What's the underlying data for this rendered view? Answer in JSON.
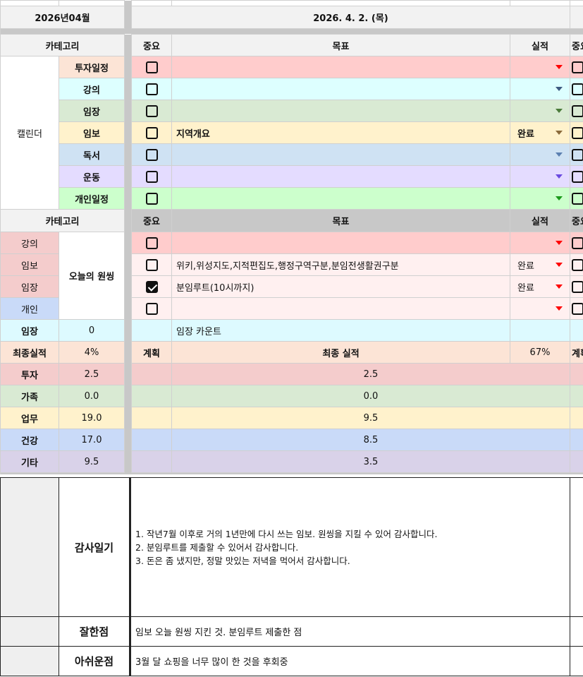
{
  "header": {
    "month": "2026년04월",
    "date": "2026. 4. 2. (목)"
  },
  "colors": {
    "separator": "#c8c8c8",
    "header_bg": "#f2f2f2",
    "dropdown_arrow": "#ff0000"
  },
  "calendar": {
    "category_header": "카테고리",
    "importance_header": "중요",
    "goal_header": "목표",
    "result_header": "실적",
    "group_label": "캘린더",
    "rows": [
      {
        "label": "투자일정",
        "label_color": "#fce4d6",
        "color": "#ffcccc",
        "arrow": "#ff0000",
        "checked": false,
        "goal": "",
        "result": ""
      },
      {
        "label": "강의",
        "label_color": "#ddffff",
        "color": "#ddffff",
        "arrow": "#3d5a80",
        "checked": false,
        "goal": "",
        "result": ""
      },
      {
        "label": "임장",
        "label_color": "#d9ead3",
        "color": "#d9ead3",
        "arrow": "#4a7a3a",
        "checked": false,
        "goal": "",
        "result": ""
      },
      {
        "label": "임보",
        "label_color": "#fff2cc",
        "color": "#fff2cc",
        "arrow": "#8a6a3a",
        "checked": false,
        "goal": "지역개요",
        "result": "완료"
      },
      {
        "label": "독서",
        "label_color": "#cfe2f3",
        "color": "#cfe2f3",
        "arrow": "#5b7fb0",
        "checked": false,
        "goal": "",
        "result": ""
      },
      {
        "label": "운동",
        "label_color": "#e4dcff",
        "color": "#e4dcff",
        "arrow": "#6a4ae0",
        "checked": false,
        "goal": "",
        "result": ""
      },
      {
        "label": "개인일정",
        "label_color": "#ccffcc",
        "color": "#ccffcc",
        "arrow": "#1a9a1a",
        "checked": false,
        "goal": "",
        "result": ""
      }
    ]
  },
  "onething": {
    "category_header": "카테고리",
    "importance_header": "중요",
    "goal_header": "목표",
    "result_header": "실적",
    "group_label": "오늘의 원씽",
    "rows": [
      {
        "label": "강의",
        "label_color": "#f4cccc",
        "color": "#ffcccc",
        "checked": false,
        "goal": "",
        "result": ""
      },
      {
        "label": "임보",
        "label_color": "#f4cccc",
        "color": "#fff0f0",
        "checked": false,
        "goal": "위키,위성지도,지적편집도,행정구역구분,분임전생활권구분",
        "result": "완료"
      },
      {
        "label": "임장",
        "label_color": "#f4cccc",
        "color": "#fff0f0",
        "checked": true,
        "goal": "분임루트(10시까지)",
        "result": "완료"
      },
      {
        "label": "개인",
        "label_color": "#c9daf8",
        "color": "#fff0f0",
        "checked": false,
        "goal": "",
        "result": ""
      }
    ]
  },
  "visit": {
    "label": "임장",
    "count": "0",
    "goal": "임장 카운트",
    "color": "#ddfaff"
  },
  "final": {
    "label": "최종실적",
    "value": "4%",
    "plan": "계획",
    "title": "최종 실적",
    "percent": "67%",
    "next": "계획",
    "color": "#fce4d6"
  },
  "scores": [
    {
      "label": "투자",
      "value": "2.5",
      "final": "2.5",
      "color": "#f4cccc"
    },
    {
      "label": "가족",
      "value": "0.0",
      "final": "0.0",
      "color": "#d9ead3"
    },
    {
      "label": "업무",
      "value": "19.0",
      "final": "9.5",
      "color": "#fff2cc"
    },
    {
      "label": "건강",
      "value": "17.0",
      "final": "8.5",
      "color": "#c9daf8"
    },
    {
      "label": "기타",
      "value": "9.5",
      "final": "3.5",
      "color": "#d9d2e9"
    }
  ],
  "journal": {
    "gratitude_label": "감사일기",
    "gratitude_lines": [
      "1. 작년7월 이후로 거의 1년만에 다시 쓰는 임보. 원씽을 지킬 수 있어 감사합니다.",
      "2. 분임루트를 제출할 수 있어서 감사합니다.",
      "3. 돈은 좀 냈지만, 정말 맛있는 저녁을 먹어서 감사합니다."
    ],
    "good_label": "잘한점",
    "good_text": "임보 오늘 원씽 지킨 것. 분임루트 제출한 점",
    "regret_label": "아쉬운점",
    "regret_text": "3월 달 쇼핑을 너무 많이 한 것을 후회중"
  }
}
